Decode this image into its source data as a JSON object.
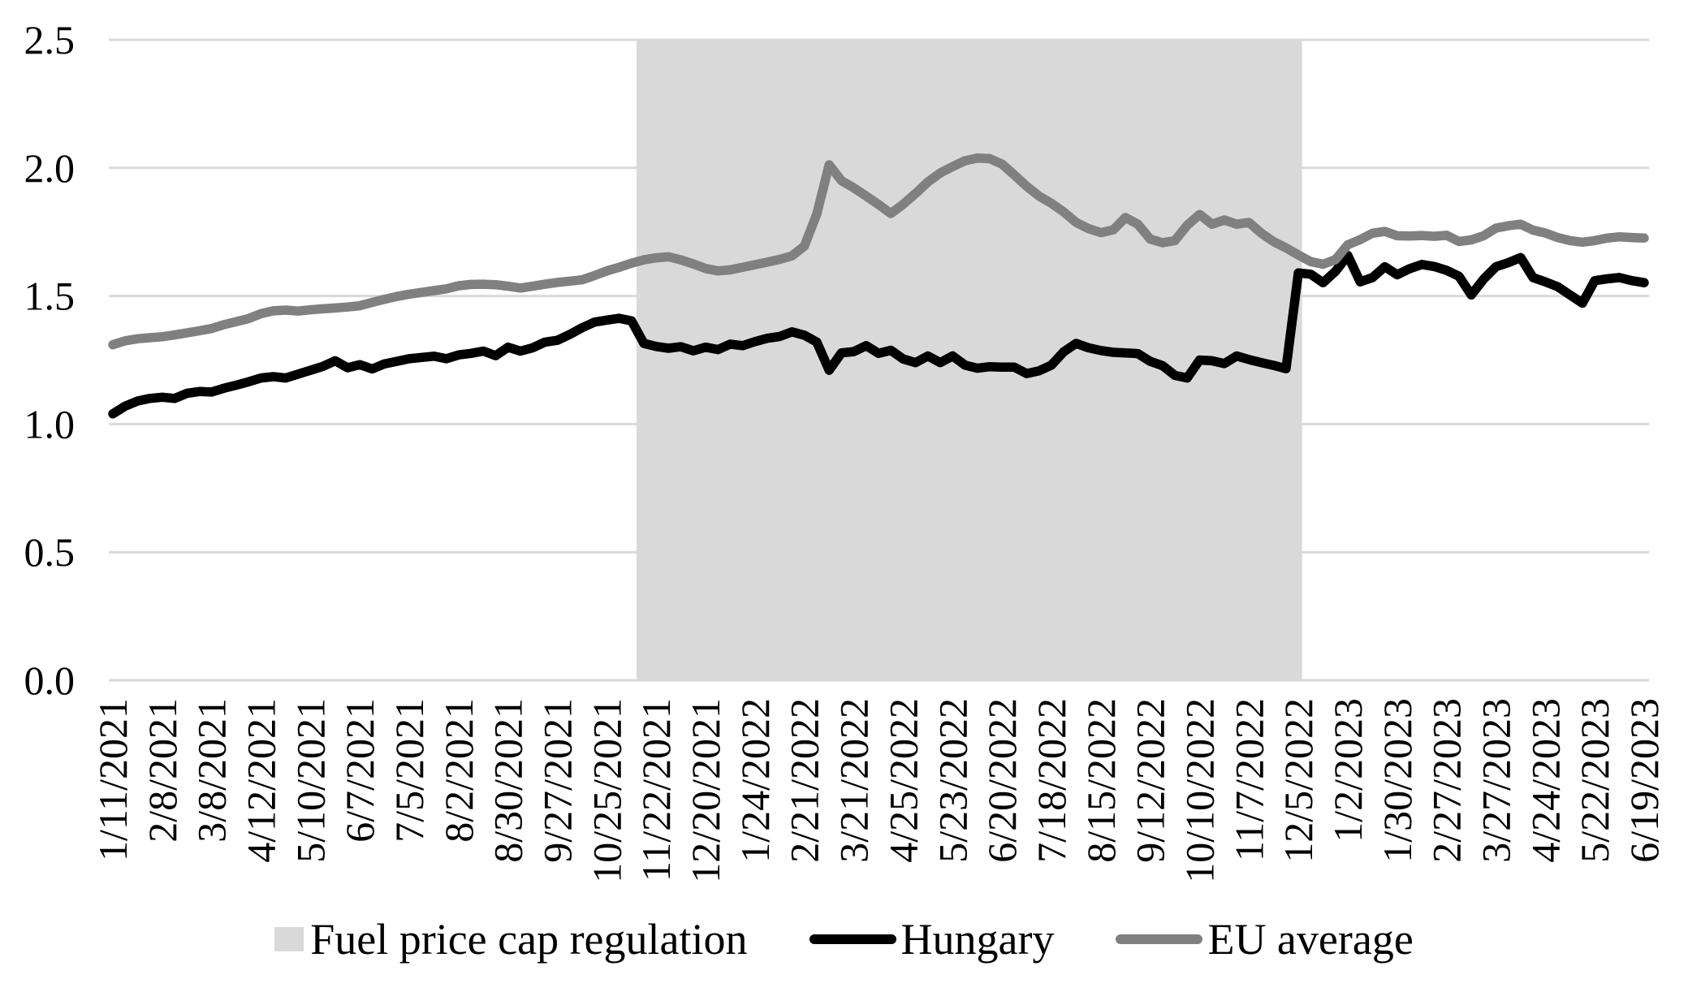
{
  "chart_data": {
    "type": "line",
    "title": "",
    "xlabel": "",
    "ylabel": "",
    "ylim": [
      0.0,
      2.5
    ],
    "yticks": [
      0.0,
      0.5,
      1.0,
      1.5,
      2.0,
      2.5
    ],
    "grid": "horizontal",
    "grid_color": "#d9d9d9",
    "background_color": "#ffffff",
    "legend_position": "bottom",
    "label_every": 4,
    "x_labels": [
      "1/11/2021",
      "2/8/2021",
      "3/8/2021",
      "4/12/2021",
      "5/10/2021",
      "6/7/2021",
      "7/5/2021",
      "8/2/2021",
      "8/30/2021",
      "9/27/2021",
      "10/25/2021",
      "11/22/2021",
      "12/20/2021",
      "1/24/2022",
      "2/21/2022",
      "3/21/2022",
      "4/25/2022",
      "5/23/2022",
      "6/20/2022",
      "7/18/2022",
      "8/15/2022",
      "9/12/2022",
      "10/10/2022",
      "11/7/2022",
      "12/5/2022",
      "1/2/2023",
      "1/30/2023",
      "2/27/2023",
      "3/27/2023",
      "4/24/2023",
      "5/22/2023",
      "6/19/2023"
    ],
    "regulation_band": {
      "label": "Fuel price cap regulation",
      "color": "#d9d9d9",
      "start_index": 42.4,
      "end_index": 96.3
    },
    "series": [
      {
        "name": "Hungary",
        "color": "#000000",
        "values": [
          1.04,
          1.07,
          1.09,
          1.1,
          1.105,
          1.1,
          1.12,
          1.127,
          1.125,
          1.14,
          1.152,
          1.165,
          1.18,
          1.185,
          1.18,
          1.195,
          1.21,
          1.225,
          1.247,
          1.22,
          1.232,
          1.215,
          1.235,
          1.245,
          1.255,
          1.26,
          1.265,
          1.255,
          1.27,
          1.276,
          1.285,
          1.267,
          1.3,
          1.285,
          1.298,
          1.32,
          1.327,
          1.35,
          1.376,
          1.398,
          1.406,
          1.413,
          1.403,
          1.315,
          1.303,
          1.296,
          1.302,
          1.286,
          1.3,
          1.291,
          1.312,
          1.306,
          1.322,
          1.335,
          1.342,
          1.36,
          1.347,
          1.32,
          1.21,
          1.278,
          1.283,
          1.306,
          1.276,
          1.288,
          1.254,
          1.24,
          1.266,
          1.24,
          1.266,
          1.23,
          1.218,
          1.224,
          1.222,
          1.222,
          1.197,
          1.208,
          1.23,
          1.282,
          1.315,
          1.298,
          1.287,
          1.28,
          1.278,
          1.275,
          1.245,
          1.228,
          1.19,
          1.18,
          1.25,
          1.247,
          1.236,
          1.266,
          1.252,
          1.24,
          1.229,
          1.216,
          1.59,
          1.585,
          1.552,
          1.596,
          1.658,
          1.555,
          1.572,
          1.614,
          1.583,
          1.606,
          1.623,
          1.615,
          1.6,
          1.577,
          1.504,
          1.566,
          1.614,
          1.63,
          1.65,
          1.572,
          1.555,
          1.536,
          1.504,
          1.472,
          1.56,
          1.567,
          1.572,
          1.56,
          1.552
        ]
      },
      {
        "name": "EU average",
        "color": "#808080",
        "values": [
          1.31,
          1.325,
          1.333,
          1.337,
          1.341,
          1.348,
          1.356,
          1.364,
          1.373,
          1.388,
          1.4,
          1.412,
          1.431,
          1.442,
          1.445,
          1.441,
          1.446,
          1.45,
          1.453,
          1.457,
          1.462,
          1.475,
          1.487,
          1.498,
          1.507,
          1.514,
          1.521,
          1.528,
          1.54,
          1.545,
          1.546,
          1.544,
          1.538,
          1.531,
          1.538,
          1.546,
          1.553,
          1.558,
          1.563,
          1.58,
          1.598,
          1.612,
          1.628,
          1.641,
          1.649,
          1.653,
          1.641,
          1.625,
          1.607,
          1.598,
          1.602,
          1.612,
          1.622,
          1.632,
          1.643,
          1.657,
          1.695,
          1.82,
          2.012,
          1.95,
          1.922,
          1.89,
          1.857,
          1.822,
          1.858,
          1.9,
          1.945,
          1.98,
          2.005,
          2.028,
          2.038,
          2.036,
          2.015,
          1.972,
          1.928,
          1.89,
          1.862,
          1.828,
          1.787,
          1.763,
          1.747,
          1.758,
          1.806,
          1.78,
          1.722,
          1.708,
          1.716,
          1.776,
          1.818,
          1.78,
          1.797,
          1.78,
          1.787,
          1.745,
          1.712,
          1.688,
          1.66,
          1.634,
          1.624,
          1.642,
          1.7,
          1.72,
          1.745,
          1.752,
          1.735,
          1.734,
          1.736,
          1.733,
          1.737,
          1.713,
          1.719,
          1.735,
          1.765,
          1.774,
          1.78,
          1.757,
          1.746,
          1.728,
          1.716,
          1.71,
          1.716,
          1.726,
          1.731,
          1.728,
          1.726
        ]
      }
    ]
  }
}
